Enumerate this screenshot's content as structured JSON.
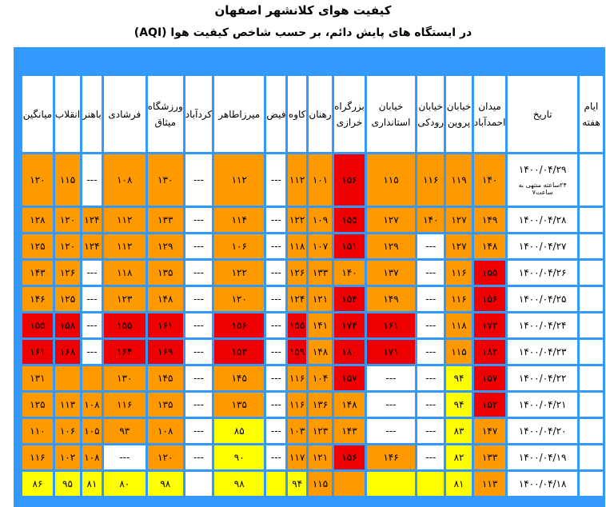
{
  "title": "کیفیت هوای کلانشهر اصفهان",
  "subtitle": "در ایستگاه های پایش دائم، بر حسب شاخص کیفیت هوا (AQI)",
  "colors": {
    "header_bar": "#3399ff",
    "orange": "#ff9900",
    "red": "#ee0000",
    "yellow": "#ffff00",
    "white": "#ffffff"
  },
  "columns": [
    "ایام هفته",
    "تاریخ",
    "میدان احمدآباد",
    "خیابان پروین",
    "خیابان رودکی",
    "خیابان استانداری",
    "بزرگراه خرازی",
    "رهنان",
    "کاوه",
    "فیض",
    "میرزاطاهر",
    "کردآباد",
    "ورزشگاه میثاق",
    "فرشادی",
    "باهنر",
    "انقلاب",
    "میانگین"
  ],
  "rows": [
    {
      "date": "۱۴۰۰/۰۴/۲۹",
      "note": "۲۴ساعته منتهی به ساعت۷",
      "cells": [
        [
          "۱۴۰",
          "O"
        ],
        [
          "۱۱۹",
          "O"
        ],
        [
          "۱۱۶",
          "O"
        ],
        [
          "۱۱۵",
          "O"
        ],
        [
          "۱۵۶",
          "R"
        ],
        [
          "۱۰۱",
          "O"
        ],
        [
          "۱۱۲",
          "O"
        ],
        [
          "---",
          "W"
        ],
        [
          "۱۱۲",
          "O"
        ],
        [
          "---",
          "W"
        ],
        [
          "۱۳۰",
          "O"
        ],
        [
          "۱۰۸",
          "O"
        ],
        [
          "---",
          "W"
        ],
        [
          "۱۱۵",
          "O"
        ],
        [
          "۱۲۰",
          "O"
        ]
      ]
    },
    {
      "date": "۱۴۰۰/۰۴/۲۸",
      "cells": [
        [
          "۱۴۹",
          "O"
        ],
        [
          "۱۲۷",
          "O"
        ],
        [
          "۱۴۰",
          "O"
        ],
        [
          "۱۲۷",
          "O"
        ],
        [
          "۱۵۵",
          "R"
        ],
        [
          "۱۰۹",
          "O"
        ],
        [
          "۱۲۲",
          "O"
        ],
        [
          "---",
          "W"
        ],
        [
          "۱۱۴",
          "O"
        ],
        [
          "---",
          "W"
        ],
        [
          "۱۳۳",
          "O"
        ],
        [
          "۱۱۲",
          "O"
        ],
        [
          "۱۲۴",
          "O"
        ],
        [
          "۱۲۰",
          "O"
        ],
        [
          "۱۲۸",
          "O"
        ]
      ]
    },
    {
      "date": "۱۴۰۰/۰۴/۲۷",
      "cells": [
        [
          "۱۴۸",
          "O"
        ],
        [
          "۱۲۷",
          "O"
        ],
        [
          "---",
          "W"
        ],
        [
          "۱۲۹",
          "O"
        ],
        [
          "۱۵۱",
          "R"
        ],
        [
          "۱۰۷",
          "O"
        ],
        [
          "۱۱۸",
          "O"
        ],
        [
          "---",
          "W"
        ],
        [
          "۱۰۶",
          "O"
        ],
        [
          "---",
          "W"
        ],
        [
          "۱۲۹",
          "O"
        ],
        [
          "۱۱۲",
          "O"
        ],
        [
          "۱۲۴",
          "O"
        ],
        [
          "۱۲۰",
          "O"
        ],
        [
          "۱۲۵",
          "O"
        ]
      ]
    },
    {
      "date": "۱۴۰۰/۰۴/۲۶",
      "cells": [
        [
          "۱۵۵",
          "R"
        ],
        [
          "۱۱۶",
          "O"
        ],
        [
          "---",
          "W"
        ],
        [
          "۱۳۷",
          "O"
        ],
        [
          "۱۴۰",
          "O"
        ],
        [
          "۱۳۳",
          "O"
        ],
        [
          "۱۲۶",
          "O"
        ],
        [
          "---",
          "W"
        ],
        [
          "۱۲۲",
          "O"
        ],
        [
          "---",
          "W"
        ],
        [
          "۱۳۵",
          "O"
        ],
        [
          "۱۱۸",
          "O"
        ],
        [
          "---",
          "W"
        ],
        [
          "۱۲۶",
          "O"
        ],
        [
          "۱۴۳",
          "O"
        ]
      ]
    },
    {
      "date": "۱۴۰۰/۰۴/۲۵",
      "cells": [
        [
          "۱۵۶",
          "R"
        ],
        [
          "۱۱۶",
          "O"
        ],
        [
          "---",
          "W"
        ],
        [
          "۱۴۹",
          "O"
        ],
        [
          "۱۵۴",
          "R"
        ],
        [
          "۱۲۱",
          "O"
        ],
        [
          "۱۲۴",
          "O"
        ],
        [
          "---",
          "W"
        ],
        [
          "۱۲۰",
          "O"
        ],
        [
          "---",
          "W"
        ],
        [
          "۱۴۸",
          "O"
        ],
        [
          "۱۲۳",
          "O"
        ],
        [
          "---",
          "W"
        ],
        [
          "۱۲۵",
          "O"
        ],
        [
          "۱۴۶",
          "O"
        ]
      ]
    },
    {
      "date": "۱۴۰۰/۰۴/۲۴",
      "cells": [
        [
          "۱۷۲",
          "R"
        ],
        [
          "۱۱۸",
          "O"
        ],
        [
          "---",
          "W"
        ],
        [
          "۱۶۱",
          "R"
        ],
        [
          "۱۷۴",
          "R"
        ],
        [
          "۱۴۱",
          "O"
        ],
        [
          "۱۵۵",
          "R"
        ],
        [
          "---",
          "W"
        ],
        [
          "۱۵۶",
          "R"
        ],
        [
          "---",
          "W"
        ],
        [
          "۱۶۱",
          "R"
        ],
        [
          "۱۵۵",
          "R"
        ],
        [
          "---",
          "W"
        ],
        [
          "۱۵۸",
          "R"
        ],
        [
          "۱۵۵",
          "R"
        ]
      ]
    },
    {
      "date": "۱۴۰۰/۰۴/۲۳",
      "cells": [
        [
          "۱۸۳",
          "R"
        ],
        [
          "۱۱۵",
          "O"
        ],
        [
          "---",
          "W"
        ],
        [
          "۱۷۱",
          "R"
        ],
        [
          "۱۸۰",
          "R"
        ],
        [
          "۱۴۸",
          "O"
        ],
        [
          "۱۵۹",
          "R"
        ],
        [
          "---",
          "W"
        ],
        [
          "۱۵۳",
          "R"
        ],
        [
          "---",
          "W"
        ],
        [
          "۱۶۹",
          "R"
        ],
        [
          "۱۶۴",
          "R"
        ],
        [
          "---",
          "W"
        ],
        [
          "۱۶۸",
          "R"
        ],
        [
          "۱۶۱",
          "R"
        ]
      ]
    },
    {
      "date": "۱۴۰۰/۰۴/۲۲",
      "cells": [
        [
          "۱۵۷",
          "R"
        ],
        [
          "۹۴",
          "Y"
        ],
        [
          "---",
          "W"
        ],
        [
          "---",
          "W"
        ],
        [
          "۱۵۷",
          "R"
        ],
        [
          "۱۰۴",
          "O"
        ],
        [
          "۱۱۶",
          "O"
        ],
        [
          "---",
          "W"
        ],
        [
          "۱۴۵",
          "O"
        ],
        [
          "---",
          "W"
        ],
        [
          "۱۴۵",
          "O"
        ],
        [
          "۱۳۰",
          "O"
        ],
        [
          "",
          "O"
        ],
        [
          "",
          "O"
        ],
        [
          "۱۳۱",
          "O"
        ]
      ]
    },
    {
      "date": "۱۴۰۰/۰۴/۲۱",
      "cells": [
        [
          "۱۵۲",
          "R"
        ],
        [
          "۹۴",
          "Y"
        ],
        [
          "---",
          "W"
        ],
        [
          "---",
          "W"
        ],
        [
          "۱۴۸",
          "O"
        ],
        [
          "۱۳۶",
          "O"
        ],
        [
          "۱۱۶",
          "O"
        ],
        [
          "---",
          "W"
        ],
        [
          "۱۳۵",
          "O"
        ],
        [
          "---",
          "W"
        ],
        [
          "۱۳۵",
          "O"
        ],
        [
          "۱۱۶",
          "O"
        ],
        [
          "۱۰۸",
          "O"
        ],
        [
          "۱۱۳",
          "O"
        ],
        [
          "۱۲۵",
          "O"
        ]
      ]
    },
    {
      "date": "۱۴۰۰/۰۴/۲۰",
      "cells": [
        [
          "۱۴۷",
          "O"
        ],
        [
          "۸۳",
          "Y"
        ],
        [
          "---",
          "W"
        ],
        [
          "---",
          "W"
        ],
        [
          "۱۴۳",
          "O"
        ],
        [
          "۱۲۳",
          "O"
        ],
        [
          "۱۰۳",
          "O"
        ],
        [
          "---",
          "W"
        ],
        [
          "۸۵",
          "Y"
        ],
        [
          "---",
          "W"
        ],
        [
          "۱۰۸",
          "O"
        ],
        [
          "۹۳",
          "O"
        ],
        [
          "۱۰۵",
          "O"
        ],
        [
          "۱۰۶",
          "O"
        ],
        [
          "۱۱۰",
          "O"
        ]
      ]
    },
    {
      "date": "۱۴۰۰/۰۴/۱۹",
      "cells": [
        [
          "۱۳۳",
          "O"
        ],
        [
          "۸۲",
          "Y"
        ],
        [
          "---",
          "W"
        ],
        [
          "۱۴۶",
          "O"
        ],
        [
          "۱۵۶",
          "R"
        ],
        [
          "۱۲۱",
          "O"
        ],
        [
          "۱۱۷",
          "O"
        ],
        [
          "---",
          "W"
        ],
        [
          "۹۰",
          "Y"
        ],
        [
          "---",
          "W"
        ],
        [
          "۱۲۰",
          "O"
        ],
        [
          "---",
          "W"
        ],
        [
          "۱۰۸",
          "O"
        ],
        [
          "۱۰۲",
          "O"
        ],
        [
          "۱۱۶",
          "O"
        ]
      ]
    },
    {
      "date": "۱۴۰۰/۰۴/۱۸",
      "cells": [
        [
          "۱۱۳",
          "O"
        ],
        [
          "۸۱",
          "Y"
        ],
        [
          "",
          "Y"
        ],
        [
          "",
          "Y"
        ],
        [
          "",
          "O"
        ],
        [
          "۱۱۵",
          "O"
        ],
        [
          "۹۴",
          "Y"
        ],
        [
          "",
          "Y"
        ],
        [
          "۹۸",
          "Y"
        ],
        [
          "",
          "W"
        ],
        [
          "۹۸",
          "Y"
        ],
        [
          "۸۰",
          "Y"
        ],
        [
          "۸۱",
          "Y"
        ],
        [
          "۹۵",
          "Y"
        ],
        [
          "۸۶",
          "Y"
        ]
      ]
    }
  ]
}
